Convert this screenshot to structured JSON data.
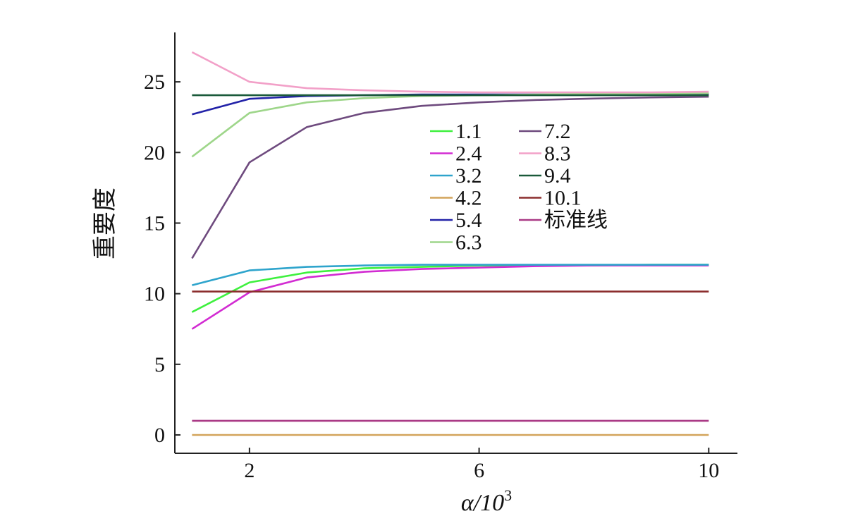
{
  "chart_data": {
    "type": "line",
    "title": "",
    "xlabel": "α/10",
    "xlabel_sup": "3",
    "ylabel": "重要度",
    "xlim": [
      0.7,
      10.5
    ],
    "ylim": [
      -1.3,
      28.5
    ],
    "xticks": [
      2,
      6,
      10
    ],
    "xtick_labels": [
      "2",
      "6",
      "10"
    ],
    "yticks": [
      0,
      5,
      10,
      15,
      20,
      25
    ],
    "ytick_labels": [
      "0",
      "5",
      "10",
      "15",
      "20",
      "25"
    ],
    "x": [
      1,
      2,
      3,
      4,
      5,
      6,
      7,
      8,
      9,
      10
    ],
    "legend_position": "center",
    "series": [
      {
        "name": "1.1",
        "color": "#3ef03e",
        "values": [
          8.7,
          10.8,
          11.5,
          11.8,
          11.9,
          12.0,
          12.0,
          12.0,
          12.05,
          12.05
        ]
      },
      {
        "name": "2.4",
        "color": "#d22bd2",
        "values": [
          7.5,
          10.1,
          11.15,
          11.55,
          11.75,
          11.85,
          11.95,
          12.0,
          12.0,
          12.0
        ]
      },
      {
        "name": "3.2",
        "color": "#2ea4cc",
        "values": [
          10.6,
          11.65,
          11.9,
          12.0,
          12.05,
          12.05,
          12.05,
          12.05,
          12.05,
          12.05
        ]
      },
      {
        "name": "4.2",
        "color": "#d2a45a",
        "values": [
          0,
          0,
          0,
          0,
          0,
          0,
          0,
          0,
          0,
          0
        ]
      },
      {
        "name": "5.4",
        "color": "#2222a8",
        "values": [
          22.7,
          23.8,
          24.0,
          24.05,
          24.1,
          24.1,
          24.1,
          24.1,
          24.1,
          24.15
        ]
      },
      {
        "name": "6.3",
        "color": "#9ed68a",
        "values": [
          19.7,
          22.8,
          23.55,
          23.85,
          24.0,
          24.05,
          24.1,
          24.15,
          24.15,
          24.2
        ]
      },
      {
        "name": "7.2",
        "color": "#6e4a7e",
        "values": [
          12.5,
          19.3,
          21.8,
          22.8,
          23.3,
          23.55,
          23.72,
          23.82,
          23.9,
          23.95
        ]
      },
      {
        "name": "8.3",
        "color": "#f2a0c8",
        "values": [
          27.1,
          25.0,
          24.55,
          24.4,
          24.3,
          24.25,
          24.25,
          24.25,
          24.25,
          24.3
        ]
      },
      {
        "name": "9.4",
        "color": "#1a5a3a",
        "values": [
          24.05,
          24.05,
          24.05,
          24.05,
          24.05,
          24.05,
          24.05,
          24.05,
          24.05,
          24.05
        ]
      },
      {
        "name": "10.1",
        "color": "#8c2e2e",
        "values": [
          10.15,
          10.15,
          10.15,
          10.15,
          10.15,
          10.15,
          10.15,
          10.15,
          10.15,
          10.15
        ]
      },
      {
        "name": "标准线",
        "color": "#aa3a86",
        "values": [
          1.0,
          1.0,
          1.0,
          1.0,
          1.0,
          1.0,
          1.0,
          1.0,
          1.0,
          1.0
        ]
      }
    ]
  }
}
